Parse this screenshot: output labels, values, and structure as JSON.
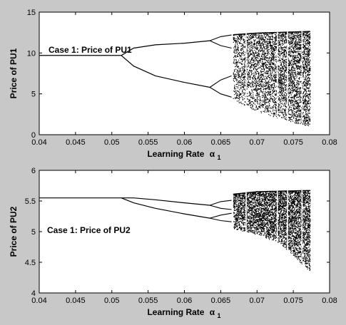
{
  "chart_data": [
    {
      "type": "scatter",
      "annotation": "Case 1: Price of PU1",
      "xlabel": "Learning Rate",
      "xlabel_symbol": "α",
      "xlabel_subscript": "1",
      "ylabel": "Price of PU1",
      "xlim": [
        0.04,
        0.08
      ],
      "ylim": [
        0,
        15
      ],
      "xticks": [
        "0.04",
        "0.045",
        "0.05",
        "0.055",
        "0.06",
        "0.065",
        "0.07",
        "0.075",
        "0.08"
      ],
      "yticks": [
        "0",
        "5",
        "10",
        "15"
      ],
      "bifurcation": {
        "fixed_point": {
          "x": [
            0.04,
            0.0513
          ],
          "y": 9.7
        },
        "period2_upper": [
          [
            0.0513,
            9.7
          ],
          [
            0.053,
            10.6
          ],
          [
            0.056,
            11.0
          ],
          [
            0.06,
            11.2
          ],
          [
            0.0635,
            11.5
          ]
        ],
        "period2_lower": [
          [
            0.0513,
            9.7
          ],
          [
            0.053,
            8.4
          ],
          [
            0.056,
            7.2
          ],
          [
            0.06,
            6.4
          ],
          [
            0.0635,
            5.8
          ]
        ],
        "period4": [
          [
            [
              0.0635,
              11.5
            ],
            [
              0.065,
              12.0
            ],
            [
              0.0665,
              12.2
            ]
          ],
          [
            [
              0.0635,
              11.5
            ],
            [
              0.065,
              10.9
            ],
            [
              0.0665,
              10.6
            ]
          ],
          [
            [
              0.0635,
              5.8
            ],
            [
              0.065,
              6.7
            ],
            [
              0.0665,
              7.2
            ]
          ],
          [
            [
              0.0635,
              5.8
            ],
            [
              0.065,
              5.0
            ],
            [
              0.0665,
              4.6
            ]
          ]
        ],
        "chaos_start": 0.0667,
        "chaos_end": 0.0773,
        "chaos_band_low": [
          [
            0.0667,
            4.3
          ],
          [
            0.069,
            3.2
          ],
          [
            0.072,
            2.3
          ],
          [
            0.075,
            1.5
          ],
          [
            0.0773,
            1.0
          ]
        ],
        "chaos_band_high": [
          [
            0.0667,
            12.3
          ],
          [
            0.07,
            12.5
          ],
          [
            0.0773,
            12.7
          ]
        ],
        "windows": [
          0.0685,
          0.0728,
          0.0742,
          0.0762
        ]
      }
    },
    {
      "type": "scatter",
      "annotation": "Case 1: Price of PU2",
      "xlabel": "Learning Rate",
      "xlabel_symbol": "α",
      "xlabel_subscript": "1",
      "ylabel": "Price of PU2",
      "xlim": [
        0.04,
        0.08
      ],
      "ylim": [
        4,
        6
      ],
      "xticks": [
        "0.04",
        "0.045",
        "0.05",
        "0.055",
        "0.06",
        "0.065",
        "0.07",
        "0.075",
        "0.08"
      ],
      "yticks": [
        "4",
        "4.5",
        "5",
        "5.5",
        "6"
      ],
      "bifurcation": {
        "fixed_point": {
          "x": [
            0.04,
            0.0513
          ],
          "y": 5.55
        },
        "period2_upper": [
          [
            0.0513,
            5.55
          ],
          [
            0.053,
            5.55
          ],
          [
            0.056,
            5.52
          ],
          [
            0.06,
            5.47
          ],
          [
            0.0635,
            5.43
          ]
        ],
        "period2_lower": [
          [
            0.0513,
            5.55
          ],
          [
            0.053,
            5.47
          ],
          [
            0.056,
            5.38
          ],
          [
            0.06,
            5.29
          ],
          [
            0.0635,
            5.22
          ]
        ],
        "period4": [
          [
            [
              0.0635,
              5.43
            ],
            [
              0.065,
              5.49
            ],
            [
              0.0665,
              5.51
            ]
          ],
          [
            [
              0.0635,
              5.43
            ],
            [
              0.065,
              5.38
            ],
            [
              0.0665,
              5.36
            ]
          ],
          [
            [
              0.0635,
              5.22
            ],
            [
              0.065,
              5.27
            ],
            [
              0.0665,
              5.3
            ]
          ],
          [
            [
              0.0635,
              5.22
            ],
            [
              0.065,
              5.18
            ],
            [
              0.0665,
              5.16
            ]
          ]
        ],
        "chaos_start": 0.0667,
        "chaos_end": 0.0773,
        "chaos_band_low": [
          [
            0.0667,
            5.05
          ],
          [
            0.07,
            4.95
          ],
          [
            0.073,
            4.82
          ],
          [
            0.0773,
            4.35
          ]
        ],
        "chaos_band_high": [
          [
            0.0667,
            5.62
          ],
          [
            0.07,
            5.66
          ],
          [
            0.0773,
            5.68
          ]
        ],
        "windows": [
          0.0685,
          0.0728,
          0.0742,
          0.0762
        ]
      }
    }
  ]
}
